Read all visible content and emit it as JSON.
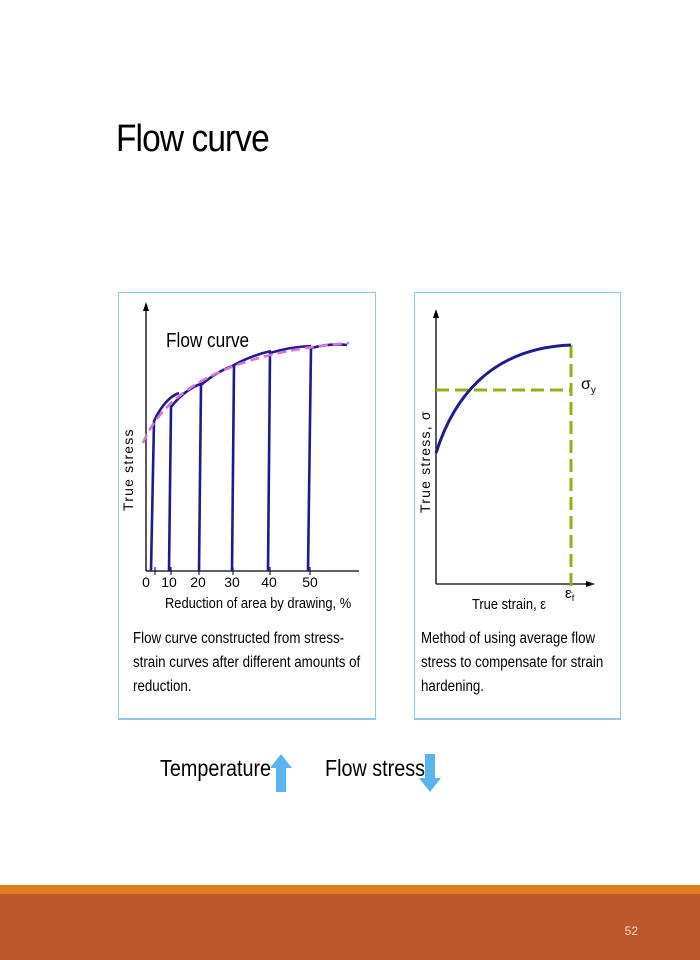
{
  "slide": {
    "title": "Flow curve",
    "page_number": "52"
  },
  "left_panel": {
    "curve_label": "Flow curve",
    "y_axis_label": "True stress",
    "x_axis_label": "Reduction of area by drawing, %",
    "x_ticks": [
      "0",
      "10",
      "20",
      "30",
      "40",
      "50"
    ],
    "caption_lines": [
      "Flow curve constructed from stress-",
      "strain curves after different amounts of",
      "reduction."
    ]
  },
  "right_panel": {
    "y_axis_label": "True stress, σ",
    "x_axis_label": "True strain, ε",
    "sigma_label": "σ",
    "sigma_sub": "y",
    "eps_label": "ε",
    "eps_sub": "f",
    "caption_lines": [
      "Method of using average flow",
      "stress to compensate for strain",
      "hardening."
    ]
  },
  "trends": {
    "temperature_label": "Temperature",
    "flow_stress_label": "Flow stress"
  },
  "colors": {
    "curve": "#1c1c8c",
    "envelope": "#e070d8",
    "average_line": "#8ab414",
    "arrow": "#5ab4ee",
    "panel_border": "#8fcaea",
    "footer_band": "#bd5829",
    "footer_line": "#e07c1c"
  }
}
